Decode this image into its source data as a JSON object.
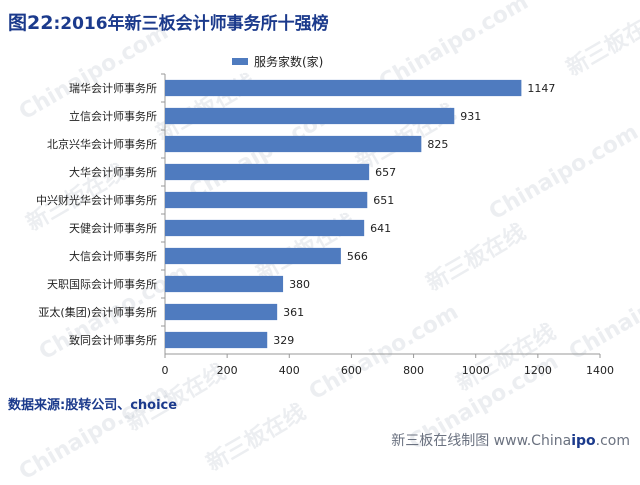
{
  "header": {
    "fig_label": "图22",
    "title_text": ":2016年新三板会计师事务所十强榜"
  },
  "footer": {
    "source": "数据来源:股转公司、choice",
    "credit_prefix": "新三板在线制图 www.China",
    "credit_bold": "ipo",
    "credit_suffix": ".com"
  },
  "watermark": {
    "text_cn": "新三板在线",
    "text_en": "Chinaipo.com"
  },
  "chart_data": {
    "type": "bar",
    "orientation": "horizontal",
    "categories": [
      "瑞华会计师事务所",
      "立信会计师事务所",
      "北京兴华会计师事务所",
      "大华会计师事务所",
      "中兴财光华会计师事务所",
      "天健会计师事务所",
      "大信会计师事务所",
      "天职国际会计师事务所",
      "亚太(集团)会计师事务所",
      "致同会计师事务所"
    ],
    "series": [
      {
        "name": "服务家数(家)",
        "values": [
          1147,
          931,
          825,
          657,
          651,
          641,
          566,
          380,
          361,
          329
        ]
      }
    ],
    "xticks": [
      0,
      200,
      400,
      600,
      800,
      1000,
      1200,
      1400
    ],
    "xlim": [
      0,
      1400
    ],
    "legend_position": "top",
    "grid": false,
    "data_labels": true,
    "colors": {
      "bar": "#4f7bbf",
      "title": "#1b3a8c",
      "axis": "#999999",
      "text": "#222222"
    }
  }
}
